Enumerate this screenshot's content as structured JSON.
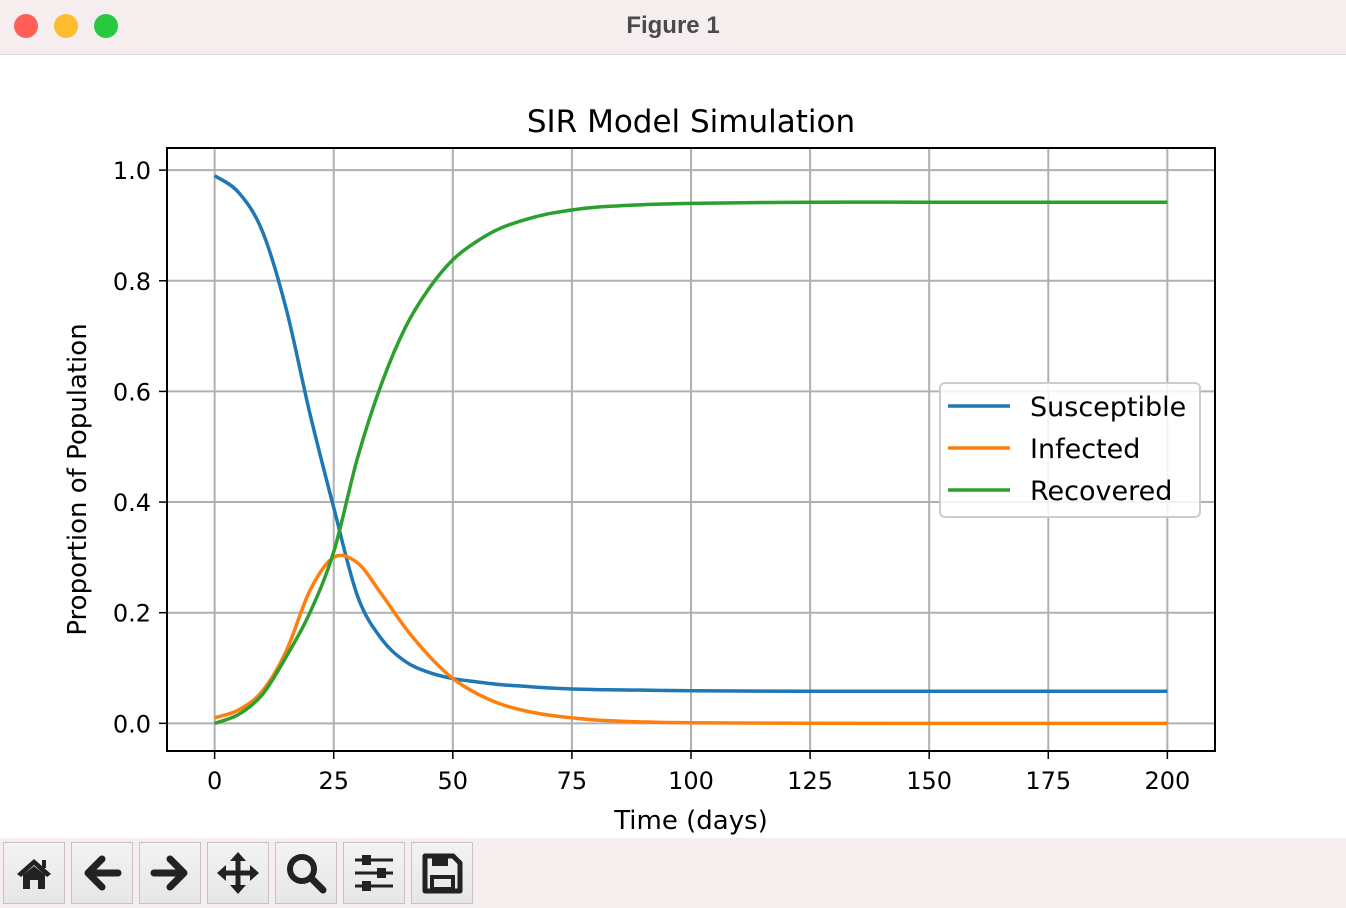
{
  "window": {
    "title": "Figure 1"
  },
  "toolbar": [
    {
      "name": "home-button",
      "icon": "home-icon"
    },
    {
      "name": "back-button",
      "icon": "arrow-left-icon"
    },
    {
      "name": "forward-button",
      "icon": "arrow-right-icon"
    },
    {
      "name": "pan-button",
      "icon": "move-icon"
    },
    {
      "name": "zoom-button",
      "icon": "magnifier-icon"
    },
    {
      "name": "configure-subplots-button",
      "icon": "sliders-icon"
    },
    {
      "name": "save-button",
      "icon": "floppy-disk-icon"
    }
  ],
  "chart_data": {
    "type": "line",
    "title": "SIR Model Simulation",
    "xlabel": "Time (days)",
    "ylabel": "Proportion of Population",
    "xlim": [
      -10,
      210
    ],
    "ylim": [
      -0.05,
      1.04
    ],
    "xticks": [
      0,
      25,
      50,
      75,
      100,
      125,
      150,
      175,
      200
    ],
    "yticks": [
      0.0,
      0.2,
      0.4,
      0.6,
      0.8,
      1.0
    ],
    "xtick_labels": [
      "0",
      "25",
      "50",
      "75",
      "100",
      "125",
      "150",
      "175",
      "200"
    ],
    "ytick_labels": [
      "0.0",
      "0.2",
      "0.4",
      "0.6",
      "0.8",
      "1.0"
    ],
    "grid": true,
    "legend_placement": "center-right",
    "x": [
      0,
      5,
      10,
      15,
      20,
      25,
      30,
      35,
      40,
      45,
      50,
      55,
      60,
      65,
      70,
      75,
      80,
      90,
      100,
      125,
      150,
      175,
      200
    ],
    "series": [
      {
        "name": "Susceptible",
        "color": "#1f77b4",
        "values": [
          0.99,
          0.96,
          0.89,
          0.75,
          0.56,
          0.39,
          0.23,
          0.153,
          0.112,
          0.092,
          0.081,
          0.075,
          0.07,
          0.067,
          0.064,
          0.062,
          0.061,
          0.06,
          0.059,
          0.058,
          0.058,
          0.058,
          0.058
        ]
      },
      {
        "name": "Infected",
        "color": "#ff7f0e",
        "values": [
          0.01,
          0.024,
          0.058,
          0.13,
          0.24,
          0.3,
          0.29,
          0.234,
          0.173,
          0.122,
          0.081,
          0.054,
          0.035,
          0.023,
          0.015,
          0.01,
          0.006,
          0.0025,
          0.001,
          0.0001,
          0.0,
          0.0,
          0.0
        ]
      },
      {
        "name": "Recovered",
        "color": "#2ca02c",
        "values": [
          0.0,
          0.016,
          0.052,
          0.12,
          0.2,
          0.31,
          0.48,
          0.613,
          0.715,
          0.786,
          0.838,
          0.871,
          0.895,
          0.91,
          0.921,
          0.928,
          0.933,
          0.9375,
          0.94,
          0.942,
          0.942,
          0.942,
          0.942
        ]
      }
    ]
  }
}
